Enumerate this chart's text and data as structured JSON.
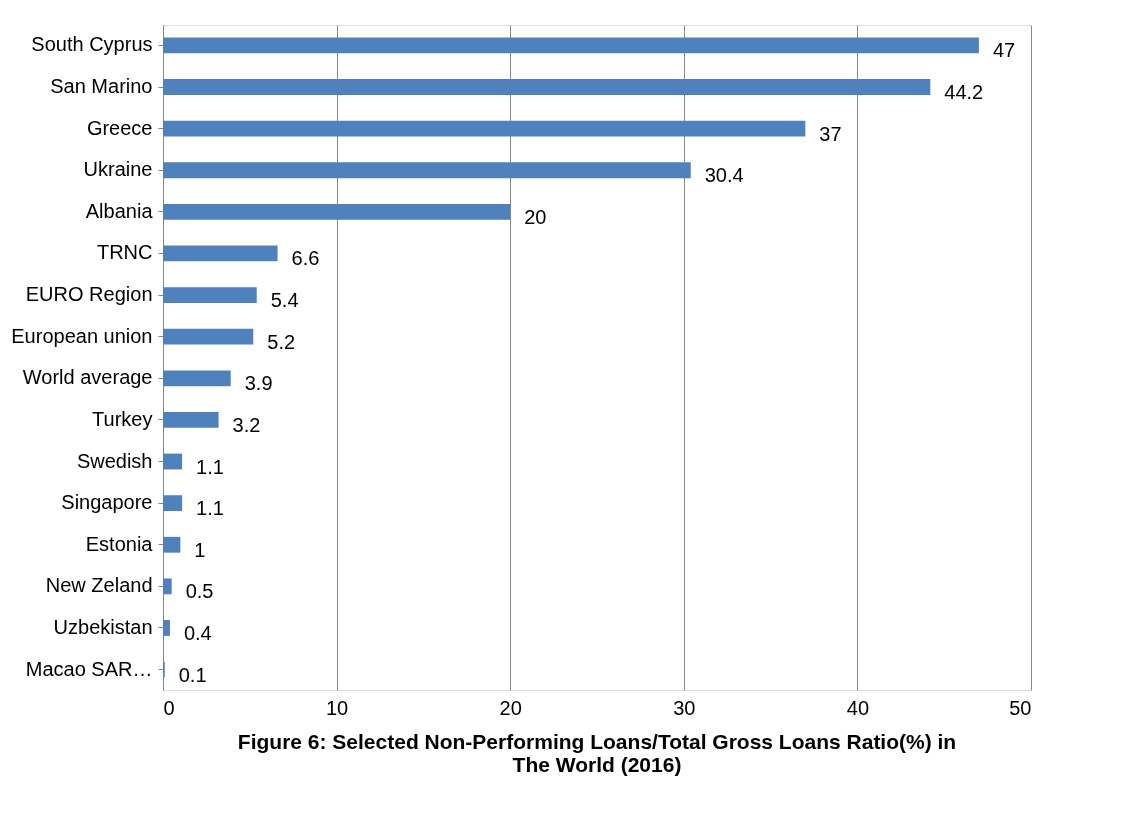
{
  "chart_data": {
    "type": "bar",
    "orientation": "horizontal",
    "title": "Figure 6: Selected  Non-Performing Loans/Total Gross Loans Ratio(%) in The World (2016)",
    "categories": [
      "South Cyprus",
      "San Marino",
      "Greece",
      "Ukraine",
      "Albania",
      "TRNC",
      "EURO Region",
      "European union",
      "World average",
      "Turkey",
      "Swedish",
      "Singapore",
      "Estonia",
      "New Zeland",
      "Uzbekistan",
      "Macao SAR…"
    ],
    "values": [
      47,
      44.2,
      37,
      30.4,
      20,
      6.6,
      5.4,
      5.2,
      3.9,
      3.2,
      1.1,
      1.1,
      1,
      0.5,
      0.4,
      0.1
    ],
    "color": "#4f81bd",
    "xlim": [
      0,
      50
    ],
    "xticks": [
      0,
      10,
      20,
      30,
      40,
      50
    ],
    "grid": "x",
    "data_labels": true
  }
}
